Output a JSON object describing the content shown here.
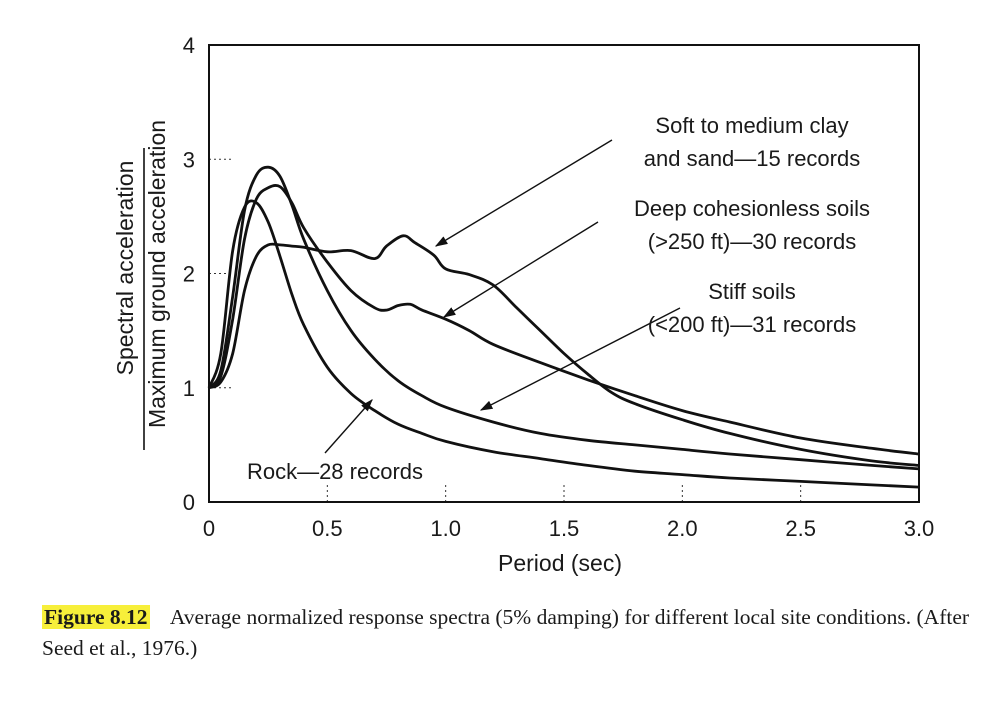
{
  "chart_data": {
    "type": "line",
    "xlabel": "Period (sec)",
    "ylabel_top": "Spectral acceleration",
    "ylabel_bottom": "Maximum ground acceleration",
    "xlim": [
      0,
      3.0
    ],
    "ylim": [
      0,
      4
    ],
    "x_ticks": [
      "0",
      "0.5",
      "1.0",
      "1.5",
      "2.0",
      "2.5",
      "3.0"
    ],
    "x_tick_values": [
      0,
      0.5,
      1.0,
      1.5,
      2.0,
      2.5,
      3.0
    ],
    "y_ticks": [
      "0",
      "1",
      "2",
      "3",
      "4"
    ],
    "y_tick_values": [
      0,
      1,
      2,
      3,
      4
    ],
    "series": [
      {
        "name": "Soft to medium clay and sand—15 records",
        "label_lines": [
          "Soft to medium clay",
          "and sand—15 records"
        ],
        "x": [
          0,
          0.05,
          0.1,
          0.15,
          0.2,
          0.25,
          0.3,
          0.35,
          0.4,
          0.5,
          0.6,
          0.7,
          0.75,
          0.82,
          0.87,
          0.95,
          1.0,
          1.1,
          1.2,
          1.3,
          1.4,
          1.5,
          1.6,
          1.7,
          1.8,
          2.0,
          2.2,
          2.5,
          2.8,
          3.0
        ],
        "y": [
          1.0,
          1.05,
          1.3,
          1.85,
          2.15,
          2.25,
          2.25,
          2.24,
          2.23,
          2.19,
          2.2,
          2.13,
          2.24,
          2.33,
          2.27,
          2.16,
          2.04,
          1.99,
          1.9,
          1.7,
          1.5,
          1.3,
          1.12,
          0.96,
          0.86,
          0.72,
          0.6,
          0.46,
          0.36,
          0.32
        ]
      },
      {
        "name": "Deep cohesionless soils (>250 ft)—30 records",
        "label_lines": [
          "Deep cohesionless soils",
          "(>250 ft)—30 records"
        ],
        "x": [
          0,
          0.05,
          0.1,
          0.15,
          0.2,
          0.25,
          0.3,
          0.35,
          0.4,
          0.5,
          0.6,
          0.7,
          0.75,
          0.8,
          0.85,
          0.9,
          1.0,
          1.1,
          1.2,
          1.4,
          1.6,
          1.8,
          2.0,
          2.2,
          2.5,
          2.8,
          3.0
        ],
        "y": [
          1.0,
          1.1,
          1.6,
          2.3,
          2.65,
          2.75,
          2.76,
          2.62,
          2.4,
          2.1,
          1.85,
          1.7,
          1.68,
          1.72,
          1.73,
          1.68,
          1.6,
          1.5,
          1.38,
          1.22,
          1.07,
          0.93,
          0.8,
          0.7,
          0.56,
          0.47,
          0.42
        ]
      },
      {
        "name": "Stiff soils (<200 ft)—31 records",
        "label_lines": [
          "Stiff soils",
          "(<200 ft)—31 records"
        ],
        "x": [
          0,
          0.05,
          0.1,
          0.15,
          0.2,
          0.25,
          0.3,
          0.35,
          0.4,
          0.5,
          0.6,
          0.7,
          0.8,
          0.9,
          1.0,
          1.2,
          1.4,
          1.6,
          1.8,
          2.0,
          2.2,
          2.5,
          2.8,
          3.0
        ],
        "y": [
          1.0,
          1.15,
          1.8,
          2.55,
          2.86,
          2.93,
          2.85,
          2.6,
          2.3,
          1.85,
          1.5,
          1.25,
          1.06,
          0.93,
          0.83,
          0.7,
          0.6,
          0.54,
          0.5,
          0.46,
          0.42,
          0.37,
          0.32,
          0.29
        ]
      },
      {
        "name": "Rock—28 records",
        "label_lines": [
          "Rock—28 records"
        ],
        "x": [
          0,
          0.05,
          0.1,
          0.15,
          0.2,
          0.25,
          0.3,
          0.35,
          0.4,
          0.5,
          0.6,
          0.7,
          0.8,
          0.9,
          1.0,
          1.2,
          1.4,
          1.6,
          1.8,
          2.0,
          2.2,
          2.5,
          2.8,
          3.0
        ],
        "y": [
          1.0,
          1.3,
          2.2,
          2.58,
          2.62,
          2.45,
          2.15,
          1.82,
          1.55,
          1.18,
          0.95,
          0.8,
          0.68,
          0.6,
          0.53,
          0.44,
          0.38,
          0.32,
          0.27,
          0.24,
          0.21,
          0.18,
          0.15,
          0.13
        ]
      }
    ]
  },
  "caption": {
    "figure_label": "Figure 8.12",
    "text": "Average normalized response spectra (5% damping) for different local site conditions. (After Seed et al., 1976.)"
  }
}
